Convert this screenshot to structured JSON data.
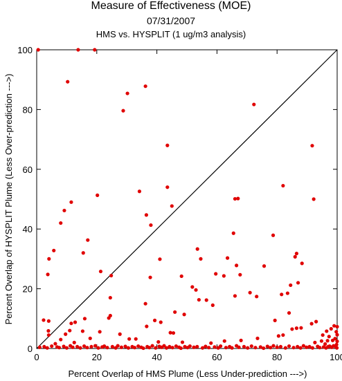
{
  "chart_data": {
    "type": "scatter",
    "title": "Measure of Effectiveness (MOE)",
    "date": "07/31/2007",
    "subtitle": "HMS vs. HYSPLIT  (1 ug/m3 analysis)",
    "xlabel": "Percent Overlap of HMS Plume (Less Under-prediction --->)",
    "ylabel": "Percent Overlap of HYSPLIT Plume (Less Over-prediction --->)",
    "xlim": [
      0,
      100
    ],
    "ylim": [
      0,
      100
    ],
    "xticks": [
      0,
      20,
      40,
      60,
      80,
      100
    ],
    "yticks": [
      0,
      20,
      40,
      60,
      80,
      100
    ],
    "grid": false,
    "reference_line": "y = x",
    "point_color": "#e00000",
    "line_color": "#000000",
    "series": [
      {
        "points": [
          [
            0.5,
            100
          ],
          [
            13.8,
            100
          ],
          [
            19.3,
            100
          ],
          [
            10.3,
            89.3
          ],
          [
            30.2,
            85.4
          ],
          [
            36.2,
            87.8
          ],
          [
            28.8,
            79.6
          ],
          [
            72.3,
            81.7
          ],
          [
            43.5,
            68.0
          ],
          [
            91.7,
            67.9
          ],
          [
            20.2,
            51.3
          ],
          [
            34.2,
            52.6
          ],
          [
            43.5,
            54.0
          ],
          [
            45.0,
            47.7
          ],
          [
            36.5,
            44.7
          ],
          [
            38.0,
            41.3
          ],
          [
            11.5,
            49.0
          ],
          [
            9.2,
            46.2
          ],
          [
            8.0,
            42.0
          ],
          [
            17.0,
            36.3
          ],
          [
            5.7,
            32.8
          ],
          [
            15.5,
            32.0
          ],
          [
            4.1,
            30.0
          ],
          [
            3.7,
            24.8
          ],
          [
            66.0,
            50.1
          ],
          [
            67.0,
            50.2
          ],
          [
            82.0,
            54.5
          ],
          [
            92.2,
            50.0
          ],
          [
            65.5,
            38.6
          ],
          [
            78.7,
            37.9
          ],
          [
            63.5,
            30.3
          ],
          [
            66.5,
            27.8
          ],
          [
            71.0,
            18.7
          ],
          [
            86.5,
            31.8
          ],
          [
            86.0,
            30.7
          ],
          [
            88.3,
            28.5
          ],
          [
            75.7,
            27.6
          ],
          [
            84.5,
            21.2
          ],
          [
            21.3,
            25.8
          ],
          [
            24.8,
            24.4
          ],
          [
            37.8,
            23.8
          ],
          [
            41.0,
            29.9
          ],
          [
            48.2,
            24.2
          ],
          [
            51.8,
            20.6
          ],
          [
            53.0,
            19.6
          ],
          [
            53.5,
            33.3
          ],
          [
            54.6,
            30.0
          ],
          [
            56.5,
            16.2
          ],
          [
            59.6,
            25.0
          ],
          [
            62.3,
            24.3
          ],
          [
            58.6,
            14.5
          ],
          [
            67.7,
            24.7
          ],
          [
            66.0,
            17.6
          ],
          [
            73.2,
            17.4
          ],
          [
            81.5,
            18.1
          ],
          [
            83.5,
            18.5
          ],
          [
            87.0,
            22.0
          ],
          [
            79.3,
            9.4
          ],
          [
            84.0,
            11.9
          ],
          [
            86.5,
            6.8
          ],
          [
            88.0,
            6.9
          ],
          [
            36.2,
            15.0
          ],
          [
            24.5,
            17.0
          ],
          [
            36.6,
            7.4
          ],
          [
            39.3,
            9.4
          ],
          [
            41.3,
            8.8
          ],
          [
            44.5,
            5.3
          ],
          [
            46.0,
            12.2
          ],
          [
            49.1,
            11.4
          ],
          [
            54.0,
            16.3
          ],
          [
            45.5,
            5.2
          ],
          [
            2.3,
            9.5
          ],
          [
            4.0,
            9.2
          ],
          [
            3.9,
            5.9
          ],
          [
            4.0,
            4.5
          ],
          [
            11.5,
            8.4
          ],
          [
            12.8,
            8.8
          ],
          [
            16.0,
            10.0
          ],
          [
            15.3,
            5.8
          ],
          [
            11.0,
            6.0
          ],
          [
            9.6,
            4.8
          ],
          [
            8.0,
            3.0
          ],
          [
            12.5,
            2.0
          ],
          [
            6.2,
            1.6
          ],
          [
            24.0,
            10.2
          ],
          [
            24.5,
            11.0
          ],
          [
            21.0,
            5.6
          ],
          [
            17.8,
            3.4
          ],
          [
            30.8,
            3.2
          ],
          [
            33.0,
            3.2
          ],
          [
            27.7,
            4.8
          ],
          [
            40.5,
            2.2
          ],
          [
            48.5,
            2.1
          ],
          [
            58.0,
            1.8
          ],
          [
            62.5,
            2.5
          ],
          [
            68.0,
            2.7
          ],
          [
            73.5,
            3.4
          ],
          [
            80.5,
            4.2
          ],
          [
            82.0,
            4.5
          ],
          [
            85.0,
            6.5
          ],
          [
            91.5,
            8.3
          ],
          [
            93.0,
            9.0
          ],
          [
            95.2,
            4.5
          ],
          [
            96.5,
            5.8
          ],
          [
            98.0,
            6.6
          ],
          [
            99.0,
            7.6
          ],
          [
            100,
            7.3
          ],
          [
            97.3,
            4.0
          ],
          [
            99.3,
            3.3
          ],
          [
            100,
            4.6
          ],
          [
            99.7,
            5.6
          ],
          [
            94.8,
            2.5
          ],
          [
            92.6,
            2.0
          ],
          [
            96.0,
            1.5
          ],
          [
            98.5,
            2.7
          ],
          [
            99.8,
            1.3
          ],
          [
            100,
            2.4
          ],
          [
            97.5,
            0.8
          ],
          [
            96.8,
            2.6
          ],
          [
            1.0,
            0.4
          ],
          [
            2.5,
            0.6
          ],
          [
            3.5,
            0.2
          ],
          [
            5.0,
            0.8
          ],
          [
            6.8,
            0.5
          ],
          [
            7.5,
            0.3
          ],
          [
            9.0,
            0.7
          ],
          [
            10.0,
            0.2
          ],
          [
            11.2,
            0.9
          ],
          [
            12.0,
            0.4
          ],
          [
            13.5,
            0.6
          ],
          [
            14.5,
            0.2
          ],
          [
            15.8,
            0.8
          ],
          [
            16.8,
            0.3
          ],
          [
            18.2,
            0.6
          ],
          [
            19.5,
            0.9
          ],
          [
            20.5,
            0.2
          ],
          [
            21.8,
            0.5
          ],
          [
            22.5,
            0.8
          ],
          [
            23.5,
            0.3
          ],
          [
            25.2,
            0.6
          ],
          [
            26.3,
            0.2
          ],
          [
            27.0,
            0.9
          ],
          [
            28.2,
            0.4
          ],
          [
            29.5,
            0.7
          ],
          [
            30.5,
            0.2
          ],
          [
            31.8,
            0.6
          ],
          [
            32.6,
            0.3
          ],
          [
            33.8,
            0.8
          ],
          [
            34.8,
            0.4
          ],
          [
            35.5,
            0.1
          ],
          [
            36.8,
            0.6
          ],
          [
            37.5,
            0.3
          ],
          [
            38.5,
            0.9
          ],
          [
            39.6,
            0.2
          ],
          [
            40.8,
            0.7
          ],
          [
            41.6,
            0.4
          ],
          [
            42.4,
            0.9
          ],
          [
            43.2,
            0.2
          ],
          [
            44.2,
            0.6
          ],
          [
            45.2,
            0.3
          ],
          [
            46.4,
            0.8
          ],
          [
            47.4,
            0.4
          ],
          [
            48.0,
            0.1
          ],
          [
            49.3,
            0.6
          ],
          [
            50.2,
            0.3
          ],
          [
            51.0,
            0.8
          ],
          [
            52.3,
            0.4
          ],
          [
            53.4,
            0.6
          ],
          [
            55.2,
            0.2
          ],
          [
            56.2,
            0.7
          ],
          [
            57.3,
            0.3
          ],
          [
            59.2,
            0.5
          ],
          [
            60.4,
            0.2
          ],
          [
            61.2,
            0.8
          ],
          [
            63.0,
            0.3
          ],
          [
            64.2,
            0.6
          ],
          [
            65.0,
            0.2
          ],
          [
            66.5,
            0.9
          ],
          [
            67.3,
            0.4
          ],
          [
            69.0,
            0.6
          ],
          [
            70.2,
            0.2
          ],
          [
            71.5,
            0.8
          ],
          [
            72.8,
            0.3
          ],
          [
            74.5,
            0.5
          ],
          [
            75.5,
            0.1
          ],
          [
            76.8,
            0.7
          ],
          [
            77.8,
            0.3
          ],
          [
            78.8,
            0.9
          ],
          [
            80.0,
            0.4
          ],
          [
            81.2,
            0.6
          ],
          [
            82.8,
            0.2
          ],
          [
            84.0,
            0.8
          ],
          [
            85.5,
            0.3
          ],
          [
            86.8,
            0.6
          ],
          [
            87.8,
            0.2
          ],
          [
            88.8,
            0.9
          ],
          [
            89.8,
            0.4
          ],
          [
            90.8,
            0.6
          ],
          [
            91.8,
            0.2
          ],
          [
            93.5,
            0.7
          ],
          [
            94.2,
            0.3
          ],
          [
            95.5,
            0.5
          ],
          [
            96.3,
            0.2
          ],
          [
            97.0,
            0.6
          ],
          [
            98.2,
            0.4
          ],
          [
            98.8,
            0.9
          ],
          [
            99.5,
            0.6
          ],
          [
            99.9,
            0.2
          ]
        ]
      }
    ]
  }
}
